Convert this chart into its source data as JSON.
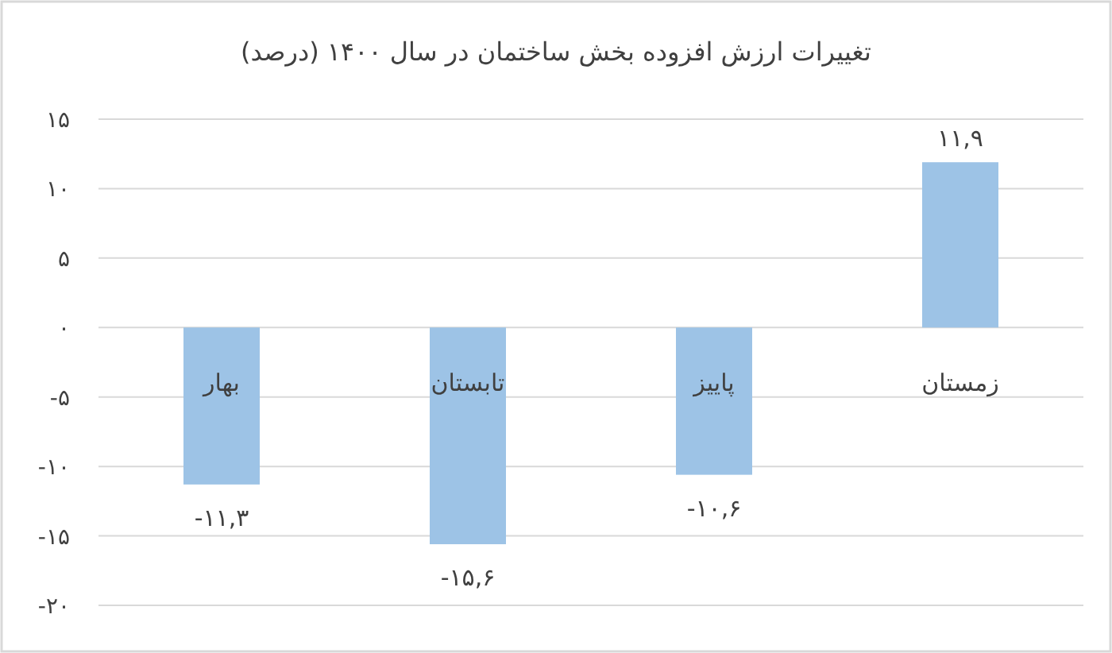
{
  "chart_data": {
    "type": "bar",
    "title": "تغییرات ارزش افزوده بخش ساختمان در سال ۱۴۰۰ (درصد)",
    "categories": [
      "بهار",
      "تابستان",
      "پاییز",
      "زمستان"
    ],
    "values": [
      -11.3,
      -15.6,
      -10.6,
      11.9
    ],
    "value_labels": [
      "-۱۱,۳",
      "-۱۵,۶",
      "-۱۰,۶",
      "۱۱,۹"
    ],
    "color": "#9dc3e6",
    "ylim": [
      -20,
      15
    ],
    "yticks": [
      {
        "value": -20,
        "label": "-۲۰"
      },
      {
        "value": -15,
        "label": "-۱۵"
      },
      {
        "value": -10,
        "label": "-۱۰"
      },
      {
        "value": -5,
        "label": "-۵"
      },
      {
        "value": 0,
        "label": "۰"
      },
      {
        "value": 5,
        "label": "۵"
      },
      {
        "value": 10,
        "label": "۱۰"
      },
      {
        "value": 15,
        "label": "۱۵"
      }
    ],
    "grid": "y"
  }
}
